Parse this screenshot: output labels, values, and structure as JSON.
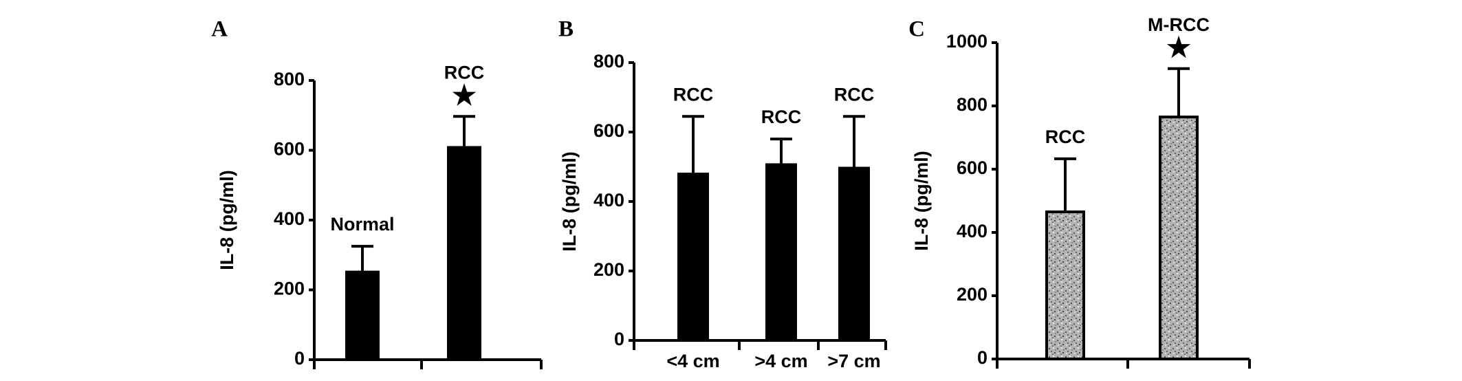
{
  "chart_data": [
    {
      "type": "bar",
      "panel_label": "A",
      "y_label": "IL-8 (pg/ml)",
      "ylim": [
        0,
        800
      ],
      "yticks": [
        0,
        200,
        400,
        600,
        800
      ],
      "categories": [
        null,
        null
      ],
      "values": [
        255,
        612
      ],
      "errors": [
        70,
        85
      ],
      "bar_labels": [
        "Normal",
        "RCC"
      ],
      "star_labels": [
        null,
        "★"
      ],
      "color": "#000000"
    },
    {
      "type": "bar",
      "panel_label": "B",
      "y_label": "IL-8 (pg/ml)",
      "ylim": [
        0,
        800
      ],
      "yticks": [
        0,
        200,
        400,
        600,
        800
      ],
      "categories": [
        "<4 cm",
        ">4 cm",
        ">7 cm"
      ],
      "values": [
        483,
        510,
        500
      ],
      "errors": [
        162,
        70,
        145
      ],
      "bar_labels": [
        "RCC",
        "RCC",
        "RCC"
      ],
      "star_labels": [
        null,
        null,
        null
      ],
      "color": "#000000"
    },
    {
      "type": "bar",
      "panel_label": "C",
      "y_label": "IL-8 (pg/ml)",
      "ylim": [
        0,
        1000
      ],
      "yticks": [
        0,
        200,
        400,
        600,
        800,
        1000
      ],
      "categories": [
        null,
        null
      ],
      "values": [
        465,
        765
      ],
      "errors": [
        168,
        153
      ],
      "bar_labels": [
        "RCC",
        "M-RCC"
      ],
      "star_labels": [
        null,
        "★"
      ],
      "color": "#a8a8a8",
      "pattern": "speckle"
    }
  ]
}
